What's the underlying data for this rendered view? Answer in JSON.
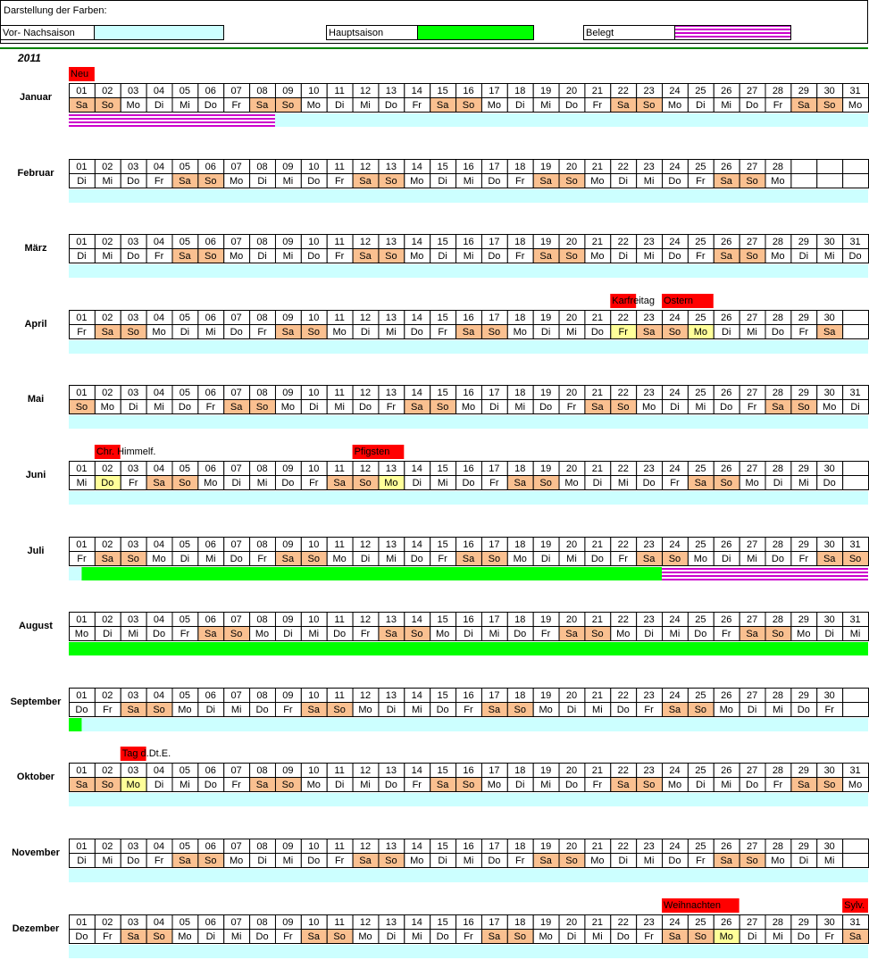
{
  "header": {
    "title": "Darstellung der Farben:"
  },
  "legend": [
    {
      "name": "Vor- Nachsaison",
      "color": "#ccffff"
    },
    {
      "name": "Hauptsaison",
      "color": "#00ff00"
    },
    {
      "name": "Belegt",
      "color": "#cc00cc",
      "pattern": "stripes"
    }
  ],
  "year": "2011",
  "weekend": [
    "Sa",
    "So"
  ],
  "weekend_color": "#fac090",
  "holiday_color": "#ffff99",
  "note_color": "#ff0000",
  "day_labels": [
    "01",
    "02",
    "03",
    "04",
    "05",
    "06",
    "07",
    "08",
    "09",
    "10",
    "11",
    "12",
    "13",
    "14",
    "15",
    "16",
    "17",
    "18",
    "19",
    "20",
    "21",
    "22",
    "23",
    "24",
    "25",
    "26",
    "27",
    "28",
    "29",
    "30",
    "31"
  ],
  "months": [
    {
      "name": "Januar",
      "weekdays": [
        "Sa",
        "So",
        "Mo",
        "Di",
        "Mi",
        "Do",
        "Fr",
        "Sa",
        "So",
        "Mo",
        "Di",
        "Mi",
        "Do",
        "Fr",
        "Sa",
        "So",
        "Mo",
        "Di",
        "Mi",
        "Do",
        "Fr",
        "Sa",
        "So",
        "Mo",
        "Di",
        "Mi",
        "Do",
        "Fr",
        "Sa",
        "So",
        "Mo"
      ],
      "holiday_days": [],
      "notes": [
        {
          "text": "Neu",
          "day": 1,
          "span": 1
        }
      ],
      "bands": [
        {
          "legend": 0,
          "from": 0,
          "to": 31
        },
        {
          "legend": 2,
          "from": 0,
          "to": 8
        }
      ]
    },
    {
      "name": "Februar",
      "weekdays": [
        "Di",
        "Mi",
        "Do",
        "Fr",
        "Sa",
        "So",
        "Mo",
        "Di",
        "Mi",
        "Do",
        "Fr",
        "Sa",
        "So",
        "Mo",
        "Di",
        "Mi",
        "Do",
        "Fr",
        "Sa",
        "So",
        "Mo",
        "Di",
        "Mi",
        "Do",
        "Fr",
        "Sa",
        "So",
        "Mo"
      ],
      "holiday_days": [],
      "notes": [],
      "bands": [
        {
          "legend": 0,
          "from": 0,
          "to": 31
        }
      ]
    },
    {
      "name": "März",
      "weekdays": [
        "Di",
        "Mi",
        "Do",
        "Fr",
        "Sa",
        "So",
        "Mo",
        "Di",
        "Mi",
        "Do",
        "Fr",
        "Sa",
        "So",
        "Mo",
        "Di",
        "Mi",
        "Do",
        "Fr",
        "Sa",
        "So",
        "Mo",
        "Di",
        "Mi",
        "Do",
        "Fr",
        "Sa",
        "So",
        "Mo",
        "Di",
        "Mi",
        "Do"
      ],
      "holiday_days": [],
      "notes": [],
      "bands": [
        {
          "legend": 0,
          "from": 0,
          "to": 31
        }
      ]
    },
    {
      "name": "April",
      "weekdays": [
        "Fr",
        "Sa",
        "So",
        "Mo",
        "Di",
        "Mi",
        "Do",
        "Fr",
        "Sa",
        "So",
        "Mo",
        "Di",
        "Mi",
        "Do",
        "Fr",
        "Sa",
        "So",
        "Mo",
        "Di",
        "Mi",
        "Do",
        "Fr",
        "Sa",
        "So",
        "Mo",
        "Di",
        "Mi",
        "Do",
        "Fr",
        "Sa"
      ],
      "holiday_days": [
        22,
        25
      ],
      "notes": [
        {
          "text": "Karfreitag",
          "day": 22,
          "span": 1
        },
        {
          "text": "Ostern",
          "day": 24,
          "span": 2
        }
      ],
      "bands": [
        {
          "legend": 0,
          "from": 0,
          "to": 31
        }
      ]
    },
    {
      "name": "Mai",
      "weekdays": [
        "So",
        "Mo",
        "Di",
        "Mi",
        "Do",
        "Fr",
        "Sa",
        "So",
        "Mo",
        "Di",
        "Mi",
        "Do",
        "Fr",
        "Sa",
        "So",
        "Mo",
        "Di",
        "Mi",
        "Do",
        "Fr",
        "Sa",
        "So",
        "Mo",
        "Di",
        "Mi",
        "Do",
        "Fr",
        "Sa",
        "So",
        "Mo",
        "Di"
      ],
      "holiday_days": [],
      "notes": [],
      "bands": [
        {
          "legend": 0,
          "from": 0,
          "to": 31
        }
      ]
    },
    {
      "name": "Juni",
      "weekdays": [
        "Mi",
        "Do",
        "Fr",
        "Sa",
        "So",
        "Mo",
        "Di",
        "Mi",
        "Do",
        "Fr",
        "Sa",
        "So",
        "Mo",
        "Di",
        "Mi",
        "Do",
        "Fr",
        "Sa",
        "So",
        "Mo",
        "Di",
        "Mi",
        "Do",
        "Fr",
        "Sa",
        "So",
        "Mo",
        "Di",
        "Mi",
        "Do"
      ],
      "holiday_days": [
        2,
        13
      ],
      "notes": [
        {
          "text": "Chr. Himmelf.",
          "day": 2,
          "span": 1
        },
        {
          "text": "Pfigsten",
          "day": 12,
          "span": 2
        }
      ],
      "bands": [
        {
          "legend": 0,
          "from": 0,
          "to": 31
        }
      ]
    },
    {
      "name": "Juli",
      "weekdays": [
        "Fr",
        "Sa",
        "So",
        "Mo",
        "Di",
        "Mi",
        "Do",
        "Fr",
        "Sa",
        "So",
        "Mo",
        "Di",
        "Mi",
        "Do",
        "Fr",
        "Sa",
        "So",
        "Mo",
        "Di",
        "Mi",
        "Do",
        "Fr",
        "Sa",
        "So",
        "Mo",
        "Di",
        "Mi",
        "Do",
        "Fr",
        "Sa",
        "So"
      ],
      "holiday_days": [],
      "notes": [],
      "bands": [
        {
          "legend": 0,
          "from": 0,
          "to": 31
        },
        {
          "legend": 1,
          "from": 0.5,
          "to": 31
        },
        {
          "legend": 2,
          "from": 23,
          "to": 31
        }
      ]
    },
    {
      "name": "August",
      "weekdays": [
        "Mo",
        "Di",
        "Mi",
        "Do",
        "Fr",
        "Sa",
        "So",
        "Mo",
        "Di",
        "Mi",
        "Do",
        "Fr",
        "Sa",
        "So",
        "Mo",
        "Di",
        "Mi",
        "Do",
        "Fr",
        "Sa",
        "So",
        "Mo",
        "Di",
        "Mi",
        "Do",
        "Fr",
        "Sa",
        "So",
        "Mo",
        "Di",
        "Mi"
      ],
      "holiday_days": [],
      "notes": [],
      "bands": [
        {
          "legend": 1,
          "from": 0,
          "to": 31
        }
      ]
    },
    {
      "name": "September",
      "weekdays": [
        "Do",
        "Fr",
        "Sa",
        "So",
        "Mo",
        "Di",
        "Mi",
        "Do",
        "Fr",
        "Sa",
        "So",
        "Mo",
        "Di",
        "Mi",
        "Do",
        "Fr",
        "Sa",
        "So",
        "Mo",
        "Di",
        "Mi",
        "Do",
        "Fr",
        "Sa",
        "So",
        "Mo",
        "Di",
        "Mi",
        "Do",
        "Fr"
      ],
      "holiday_days": [],
      "notes": [],
      "bands": [
        {
          "legend": 0,
          "from": 0,
          "to": 31
        },
        {
          "legend": 1,
          "from": 0,
          "to": 0.5
        }
      ]
    },
    {
      "name": "Oktober",
      "weekdays": [
        "Sa",
        "So",
        "Mo",
        "Di",
        "Mi",
        "Do",
        "Fr",
        "Sa",
        "So",
        "Mo",
        "Di",
        "Mi",
        "Do",
        "Fr",
        "Sa",
        "So",
        "Mo",
        "Di",
        "Mi",
        "Do",
        "Fr",
        "Sa",
        "So",
        "Mo",
        "Di",
        "Mi",
        "Do",
        "Fr",
        "Sa",
        "So",
        "Mo"
      ],
      "holiday_days": [
        3
      ],
      "notes": [
        {
          "text": "Tag d.Dt.E.",
          "day": 3,
          "span": 1
        }
      ],
      "bands": [
        {
          "legend": 0,
          "from": 0,
          "to": 31
        }
      ]
    },
    {
      "name": "November",
      "weekdays": [
        "Di",
        "Mi",
        "Do",
        "Fr",
        "Sa",
        "So",
        "Mo",
        "Di",
        "Mi",
        "Do",
        "Fr",
        "Sa",
        "So",
        "Mo",
        "Di",
        "Mi",
        "Do",
        "Fr",
        "Sa",
        "So",
        "Mo",
        "Di",
        "Mi",
        "Do",
        "Fr",
        "Sa",
        "So",
        "Mo",
        "Di",
        "Mi"
      ],
      "holiday_days": [],
      "notes": [],
      "bands": [
        {
          "legend": 0,
          "from": 0,
          "to": 31
        }
      ]
    },
    {
      "name": "Dezember",
      "weekdays": [
        "Do",
        "Fr",
        "Sa",
        "So",
        "Mo",
        "Di",
        "Mi",
        "Do",
        "Fr",
        "Sa",
        "So",
        "Mo",
        "Di",
        "Mi",
        "Do",
        "Fr",
        "Sa",
        "So",
        "Mo",
        "Di",
        "Mi",
        "Do",
        "Fr",
        "Sa",
        "So",
        "Mo",
        "Di",
        "Mi",
        "Do",
        "Fr",
        "Sa"
      ],
      "holiday_days": [
        26
      ],
      "notes": [
        {
          "text": "Weihnachten",
          "day": 24,
          "span": 3
        },
        {
          "text": "Sylv.",
          "day": 31,
          "span": 1
        }
      ],
      "bands": [
        {
          "legend": 0,
          "from": 0,
          "to": 31
        }
      ]
    }
  ]
}
